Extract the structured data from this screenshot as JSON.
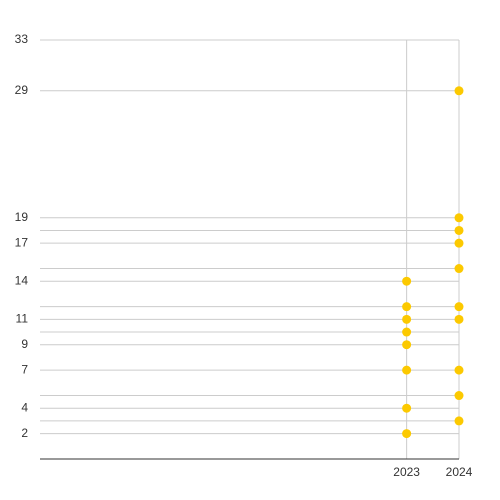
{
  "chart_data": {
    "type": "scatter",
    "series": [
      {
        "color": "#fcc900",
        "x": [
          2023,
          2023,
          2023,
          2023,
          2023,
          2023,
          2023,
          2023,
          2024,
          2024,
          2024,
          2024,
          2024,
          2024,
          2024,
          2024,
          2024,
          2024
        ],
        "values": [
          2,
          4,
          7,
          9,
          10,
          11,
          12,
          14,
          3,
          5,
          7,
          11,
          12,
          15,
          17,
          18,
          19,
          29
        ]
      }
    ],
    "xlim": [
      2016,
      2024
    ],
    "xticks": [
      2023,
      2024
    ],
    "ylim": [
      0,
      33
    ],
    "yticks": [
      2,
      4,
      7,
      9,
      11,
      14,
      17,
      19,
      29,
      33
    ],
    "minor_yticks": [
      3,
      5,
      10,
      12,
      15,
      18
    ],
    "grid": true
  }
}
